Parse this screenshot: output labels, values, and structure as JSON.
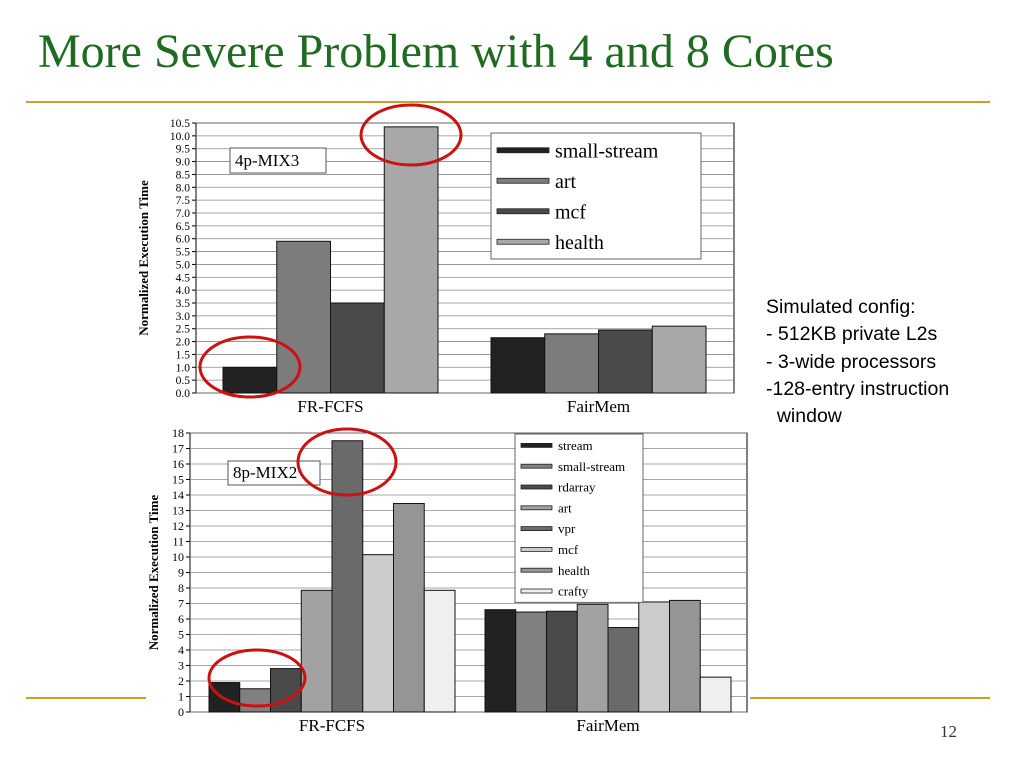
{
  "slide": {
    "title": "More Severe Problem with 4 and 8 Cores",
    "page_number": "12",
    "side_note": [
      "Simulated config:",
      "- 512KB private L2s",
      "- 3-wide processors",
      "-128-entry instruction",
      "  window"
    ],
    "accent_colors": {
      "title": "#1f6b22",
      "rule": "#c9a227",
      "highlight_circle": "#cc1111"
    }
  },
  "chart_data": [
    {
      "type": "bar",
      "inset_label": "4p-MIX3",
      "ylabel": "Normalized Execution Time",
      "xlabel": "",
      "ylim": [
        0,
        10.5
      ],
      "y_ticks": [
        "0.0",
        "0.5",
        "1.0",
        "1.5",
        "2.0",
        "2.5",
        "3.0",
        "3.5",
        "4.0",
        "4.5",
        "5.0",
        "5.5",
        "6.0",
        "6.5",
        "7.0",
        "7.5",
        "8.0",
        "8.5",
        "9.0",
        "9.5",
        "10.0",
        "10.5"
      ],
      "grid": true,
      "legend_position": "top-right",
      "categories": [
        "FR-FCFS",
        "FairMem"
      ],
      "series": [
        {
          "name": "small-stream",
          "color": "#222222",
          "values": [
            1.0,
            2.15
          ]
        },
        {
          "name": "art",
          "color": "#7c7c7c",
          "values": [
            5.9,
            2.3
          ]
        },
        {
          "name": "mcf",
          "color": "#4a4a4a",
          "values": [
            3.5,
            2.45
          ]
        },
        {
          "name": "health",
          "color": "#a8a8a8",
          "values": [
            10.35,
            2.6
          ]
        }
      ],
      "highlighted_bars": [
        [
          0,
          0
        ],
        [
          0,
          3
        ]
      ]
    },
    {
      "type": "bar",
      "inset_label": "8p-MIX2",
      "ylabel": "Normalized Execution Time",
      "xlabel": "",
      "ylim": [
        0,
        18
      ],
      "y_ticks": [
        "0",
        "1",
        "2",
        "3",
        "4",
        "5",
        "6",
        "7",
        "8",
        "9",
        "10",
        "11",
        "12",
        "13",
        "14",
        "15",
        "16",
        "17",
        "18"
      ],
      "grid": true,
      "legend_position": "top-right",
      "categories": [
        "FR-FCFS",
        "FairMem"
      ],
      "series": [
        {
          "name": "stream",
          "color": "#222222",
          "values": [
            1.9,
            6.6
          ]
        },
        {
          "name": "small-stream",
          "color": "#808080",
          "values": [
            1.5,
            6.45
          ]
        },
        {
          "name": "rdarray",
          "color": "#4a4a4a",
          "values": [
            2.8,
            6.5
          ]
        },
        {
          "name": "art",
          "color": "#a2a2a2",
          "values": [
            7.85,
            6.95
          ]
        },
        {
          "name": "vpr",
          "color": "#6a6a6a",
          "values": [
            17.5,
            5.45
          ]
        },
        {
          "name": "mcf",
          "color": "#cccccc",
          "values": [
            10.15,
            7.1
          ]
        },
        {
          "name": "health",
          "color": "#959595",
          "values": [
            13.45,
            7.2
          ]
        },
        {
          "name": "crafty",
          "color": "#efefef",
          "values": [
            7.85,
            2.25
          ]
        }
      ],
      "highlighted_bars": [
        [
          0,
          0
        ],
        [
          0,
          1
        ],
        [
          0,
          2
        ],
        [
          0,
          4
        ]
      ]
    }
  ]
}
